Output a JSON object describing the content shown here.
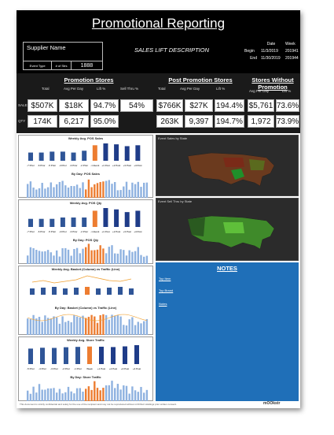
{
  "header": {
    "title": "Promotional Reporting",
    "supplier_label": "Supplier Name",
    "event_type_label": "Event Type",
    "num_stores_label": "# of Strs",
    "num_stores_value": "1888",
    "sales_lift_label": "SALES LIFT DESCRIPTION",
    "date_header": "Date",
    "week_header": "Week",
    "begin_label": "Begin",
    "begin_date": "11/3/2019",
    "begin_week": "201941",
    "end_label": "End",
    "end_date": "11/30/2019",
    "end_week": "201944"
  },
  "kpi": {
    "promo_title": "Promotion Stores",
    "post_title": "Post Promotion Stores",
    "without_title_1": "Stores Without",
    "without_title_2": "Promotion",
    "col_total": "Total",
    "col_avg": "Avg Per Day",
    "col_lift": "Lift %",
    "col_sellthru": "Sell Thru %",
    "row_sales": "SALES",
    "row_qty": "QTY",
    "promo_sales_total": "$507K",
    "promo_sales_avg": "$18K",
    "promo_sales_lift": "94.7%",
    "promo_sellthru": "54%",
    "promo_qty_total": "174K",
    "promo_qty_avg": "6,217",
    "promo_qty_lift": "95.0%",
    "post_sales_total": "$766K",
    "post_sales_avg": "$27K",
    "post_sales_lift": "194.4%",
    "post_qty_total": "263K",
    "post_qty_avg": "9,397",
    "post_qty_lift": "194.7%",
    "without_sales_avg": "$5,761",
    "without_sales_lift": "73.6%",
    "without_qty_avg": "1,972",
    "without_qty_lift": "73.9%"
  },
  "panels": {
    "weekly_sales": "Weekly Avg. POS Sales",
    "daily_sales": "By Day: POS Sales",
    "weekly_qty": "Weekly Avg. POS Qty",
    "daily_qty": "By Day: POS Qty",
    "weekly_basket": "Weekly Avg. Basket (Column) vs Traffic (Line)",
    "daily_basket": "By Day: Basket (Column) vs Traffic (Line)",
    "weekly_traffic": "Weekly Avg. Store Traffic",
    "daily_traffic": "By Day: Store Traffic",
    "map_sales": "Event Sales by State",
    "map_sellthru": "Event Sell Thru by State",
    "notes_title": "NOTES",
    "notes_links": [
      "Top Item",
      "Top Brand",
      "Notes"
    ]
  },
  "footer": {
    "disclaimer": "This document is strictly confidential and solely for the use of the recipient and may not be reproduced without mOObstr Holdings prior written consent.",
    "logo": "mOOkstr"
  },
  "colors": {
    "pre": "#2f5597",
    "promo": "#ed7d31",
    "post": "#1f3c88",
    "header": "#000000",
    "notes": "#1f6fb8"
  },
  "chart_data": [
    {
      "type": "bar",
      "title": "Weekly Avg. POS Sales",
      "categories": [
        "-7 Prior",
        "-6 Prior",
        "-5 Prior",
        "-4 Prior",
        "-3 Prior",
        "-2 Prior",
        "-1 Event",
        "+1 Post",
        "+2 Post",
        "+3 Post",
        "+4 Post"
      ],
      "values": [
        9.0,
        9.0,
        10.0,
        10.0,
        9.0,
        11.0,
        17.0,
        19.0,
        18.0,
        16.0,
        17.0
      ]
    },
    {
      "type": "bar",
      "title": "Weekly Avg. POS Qty",
      "categories": [
        "-7 Prior",
        "-6 Prior",
        "-5 Prior",
        "-4 Prior",
        "-3 Prior",
        "-2 Prior",
        "-1 Event",
        "+1 Post",
        "+2 Post",
        "+3 Post",
        "+4 Post"
      ],
      "values": [
        3.0,
        3.0,
        3.0,
        3.5,
        3.5,
        3.5,
        6.0,
        7.0,
        6.5,
        5.5,
        6.0
      ]
    },
    {
      "type": "bar",
      "title": "Weekly Avg. Store Traffic",
      "categories": [
        "-5 Prior",
        "-4 Prior",
        "-3 Prior",
        "-2 Prior",
        "-1 Prior",
        "Week",
        "+1 Post",
        "+2 Post",
        "+3 Post",
        "+4 Post"
      ],
      "values": [
        9.0,
        9.5,
        9.4,
        9.8,
        10.0,
        10.2,
        10.1,
        9.9,
        10.3,
        11.0
      ]
    }
  ]
}
